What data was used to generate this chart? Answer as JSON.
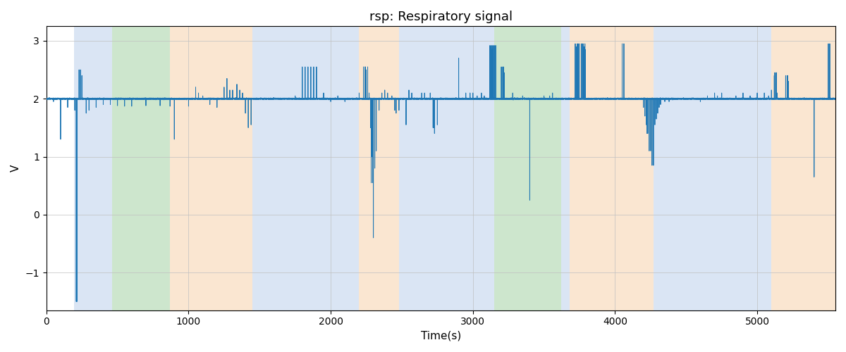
{
  "title": "rsp: Respiratory signal",
  "xlabel": "Time(s)",
  "ylabel": "V",
  "figsize": [
    12.0,
    5.0
  ],
  "dpi": 100,
  "signal_color": "#1f77b4",
  "signal_linewidth": 0.7,
  "background_color": "#ffffff",
  "ylim": [
    -1.65,
    3.25
  ],
  "xlim": [
    0,
    5550
  ],
  "baseline": 2.0,
  "bands": [
    {
      "xmin": 195,
      "xmax": 460,
      "color": "#aec6e8",
      "alpha": 0.45
    },
    {
      "xmin": 460,
      "xmax": 870,
      "color": "#90c990",
      "alpha": 0.45
    },
    {
      "xmin": 870,
      "xmax": 1450,
      "color": "#f5c99a",
      "alpha": 0.45
    },
    {
      "xmin": 1450,
      "xmax": 2200,
      "color": "#aec6e8",
      "alpha": 0.45
    },
    {
      "xmin": 2200,
      "xmax": 2480,
      "color": "#f5c99a",
      "alpha": 0.45
    },
    {
      "xmin": 2480,
      "xmax": 3100,
      "color": "#aec6e8",
      "alpha": 0.45
    },
    {
      "xmin": 3100,
      "xmax": 3150,
      "color": "#aec6e8",
      "alpha": 0.45
    },
    {
      "xmin": 3150,
      "xmax": 3620,
      "color": "#90c990",
      "alpha": 0.45
    },
    {
      "xmin": 3620,
      "xmax": 3680,
      "color": "#aec6e8",
      "alpha": 0.45
    },
    {
      "xmin": 3680,
      "xmax": 4270,
      "color": "#f5c99a",
      "alpha": 0.45
    },
    {
      "xmin": 4270,
      "xmax": 4950,
      "color": "#aec6e8",
      "alpha": 0.45
    },
    {
      "xmin": 4950,
      "xmax": 5100,
      "color": "#aec6e8",
      "alpha": 0.45
    },
    {
      "xmin": 5100,
      "xmax": 5550,
      "color": "#f5c99a",
      "alpha": 0.45
    }
  ],
  "spikes": [
    {
      "t": 50,
      "v": 1.95
    },
    {
      "t": 100,
      "v": 1.3
    },
    {
      "t": 150,
      "v": 1.85
    },
    {
      "t": 200,
      "v": 1.8
    },
    {
      "t": 210,
      "v": -1.5
    },
    {
      "t": 230,
      "v": 2.5
    },
    {
      "t": 250,
      "v": 2.4
    },
    {
      "t": 280,
      "v": 1.75
    },
    {
      "t": 300,
      "v": 1.8
    },
    {
      "t": 350,
      "v": 1.85
    },
    {
      "t": 400,
      "v": 1.9
    },
    {
      "t": 450,
      "v": 1.9
    },
    {
      "t": 500,
      "v": 1.88
    },
    {
      "t": 550,
      "v": 1.87
    },
    {
      "t": 600,
      "v": 1.87
    },
    {
      "t": 700,
      "v": 1.88
    },
    {
      "t": 800,
      "v": 1.88
    },
    {
      "t": 870,
      "v": 1.87
    },
    {
      "t": 900,
      "v": 1.3
    },
    {
      "t": 1000,
      "v": 1.87
    },
    {
      "t": 1050,
      "v": 2.2
    },
    {
      "t": 1070,
      "v": 2.1
    },
    {
      "t": 1100,
      "v": 2.05
    },
    {
      "t": 1150,
      "v": 1.9
    },
    {
      "t": 1200,
      "v": 1.85
    },
    {
      "t": 1250,
      "v": 2.2
    },
    {
      "t": 1270,
      "v": 2.35
    },
    {
      "t": 1290,
      "v": 2.15
    },
    {
      "t": 1310,
      "v": 2.15
    },
    {
      "t": 1340,
      "v": 2.25
    },
    {
      "t": 1360,
      "v": 2.15
    },
    {
      "t": 1380,
      "v": 2.1
    },
    {
      "t": 1400,
      "v": 1.75
    },
    {
      "t": 1420,
      "v": 1.5
    },
    {
      "t": 1440,
      "v": 1.55
    },
    {
      "t": 1600,
      "v": 2.0
    },
    {
      "t": 1750,
      "v": 2.05
    },
    {
      "t": 1800,
      "v": 2.5
    },
    {
      "t": 1820,
      "v": 2.55
    },
    {
      "t": 1840,
      "v": 2.5
    },
    {
      "t": 1860,
      "v": 2.45
    },
    {
      "t": 1880,
      "v": 2.55
    },
    {
      "t": 1900,
      "v": 2.55
    },
    {
      "t": 1950,
      "v": 2.1
    },
    {
      "t": 2000,
      "v": 1.95
    },
    {
      "t": 2050,
      "v": 2.05
    },
    {
      "t": 2100,
      "v": 1.95
    },
    {
      "t": 2150,
      "v": 2.0
    },
    {
      "t": 2200,
      "v": 2.1
    },
    {
      "t": 2230,
      "v": 2.5
    },
    {
      "t": 2240,
      "v": 2.55
    },
    {
      "t": 2250,
      "v": 2.5
    },
    {
      "t": 2270,
      "v": 2.1
    },
    {
      "t": 2280,
      "v": 1.5
    },
    {
      "t": 2290,
      "v": 1.0
    },
    {
      "t": 2295,
      "v": 0.55
    },
    {
      "t": 2300,
      "v": -0.4
    },
    {
      "t": 2310,
      "v": 0.8
    },
    {
      "t": 2320,
      "v": 1.1
    },
    {
      "t": 2340,
      "v": 1.8
    },
    {
      "t": 2360,
      "v": 2.1
    },
    {
      "t": 2380,
      "v": 2.15
    },
    {
      "t": 2400,
      "v": 2.1
    },
    {
      "t": 2430,
      "v": 2.05
    },
    {
      "t": 2450,
      "v": 1.8
    },
    {
      "t": 2460,
      "v": 1.75
    },
    {
      "t": 2480,
      "v": 1.8
    },
    {
      "t": 2500,
      "v": 2.0
    },
    {
      "t": 2530,
      "v": 1.55
    },
    {
      "t": 2550,
      "v": 2.15
    },
    {
      "t": 2570,
      "v": 2.1
    },
    {
      "t": 2600,
      "v": 2.0
    },
    {
      "t": 2640,
      "v": 2.1
    },
    {
      "t": 2660,
      "v": 2.1
    },
    {
      "t": 2700,
      "v": 2.1
    },
    {
      "t": 2720,
      "v": 1.5
    },
    {
      "t": 2730,
      "v": 1.4
    },
    {
      "t": 2750,
      "v": 1.55
    },
    {
      "t": 2800,
      "v": 2.0
    },
    {
      "t": 2900,
      "v": 2.7
    },
    {
      "t": 2950,
      "v": 2.1
    },
    {
      "t": 2980,
      "v": 2.1
    },
    {
      "t": 3000,
      "v": 2.1
    },
    {
      "t": 3030,
      "v": 2.05
    },
    {
      "t": 3060,
      "v": 2.1
    },
    {
      "t": 3080,
      "v": 2.05
    },
    {
      "t": 3100,
      "v": 2.0
    },
    {
      "t": 3120,
      "v": 2.85
    },
    {
      "t": 3125,
      "v": 2.9
    },
    {
      "t": 3135,
      "v": 2.85
    },
    {
      "t": 3140,
      "v": 2.9
    },
    {
      "t": 3150,
      "v": 2.8
    },
    {
      "t": 3160,
      "v": 2.55
    },
    {
      "t": 3170,
      "v": 2.0
    },
    {
      "t": 3200,
      "v": 2.5
    },
    {
      "t": 3210,
      "v": 2.55
    },
    {
      "t": 3220,
      "v": 2.45
    },
    {
      "t": 3280,
      "v": 2.1
    },
    {
      "t": 3300,
      "v": 2.0
    },
    {
      "t": 3350,
      "v": 2.05
    },
    {
      "t": 3400,
      "v": 0.25
    },
    {
      "t": 3450,
      "v": 2.0
    },
    {
      "t": 3500,
      "v": 2.05
    },
    {
      "t": 3540,
      "v": 2.05
    },
    {
      "t": 3560,
      "v": 2.1
    },
    {
      "t": 3600,
      "v": 2.0
    },
    {
      "t": 3650,
      "v": 2.0
    },
    {
      "t": 3700,
      "v": 2.0
    },
    {
      "t": 3720,
      "v": 2.95
    },
    {
      "t": 3730,
      "v": 2.9
    },
    {
      "t": 3740,
      "v": 2.95
    },
    {
      "t": 3760,
      "v": 2.9
    },
    {
      "t": 3770,
      "v": 2.95
    },
    {
      "t": 3780,
      "v": 2.9
    },
    {
      "t": 3790,
      "v": 2.85
    },
    {
      "t": 3800,
      "v": 2.0
    },
    {
      "t": 3850,
      "v": 2.0
    },
    {
      "t": 3900,
      "v": 2.0
    },
    {
      "t": 3950,
      "v": 2.0
    },
    {
      "t": 4000,
      "v": 2.0
    },
    {
      "t": 4050,
      "v": 2.95
    },
    {
      "t": 4060,
      "v": 2.9
    },
    {
      "t": 4100,
      "v": 2.0
    },
    {
      "t": 4150,
      "v": 2.0
    },
    {
      "t": 4200,
      "v": 1.85
    },
    {
      "t": 4210,
      "v": 1.7
    },
    {
      "t": 4220,
      "v": 1.55
    },
    {
      "t": 4230,
      "v": 1.4
    },
    {
      "t": 4240,
      "v": 1.25
    },
    {
      "t": 4250,
      "v": 1.1
    },
    {
      "t": 4260,
      "v": 0.95
    },
    {
      "t": 4270,
      "v": 0.85
    },
    {
      "t": 4280,
      "v": 1.55
    },
    {
      "t": 4290,
      "v": 1.65
    },
    {
      "t": 4300,
      "v": 1.75
    },
    {
      "t": 4310,
      "v": 1.85
    },
    {
      "t": 4320,
      "v": 1.9
    },
    {
      "t": 4350,
      "v": 1.95
    },
    {
      "t": 4380,
      "v": 1.95
    },
    {
      "t": 4400,
      "v": 2.0
    },
    {
      "t": 4500,
      "v": 2.0
    },
    {
      "t": 4600,
      "v": 1.95
    },
    {
      "t": 4650,
      "v": 2.05
    },
    {
      "t": 4700,
      "v": 2.1
    },
    {
      "t": 4720,
      "v": 2.05
    },
    {
      "t": 4750,
      "v": 2.1
    },
    {
      "t": 4800,
      "v": 2.0
    },
    {
      "t": 4850,
      "v": 2.05
    },
    {
      "t": 4900,
      "v": 2.1
    },
    {
      "t": 4950,
      "v": 2.05
    },
    {
      "t": 5000,
      "v": 2.1
    },
    {
      "t": 5050,
      "v": 2.1
    },
    {
      "t": 5080,
      "v": 2.05
    },
    {
      "t": 5100,
      "v": 2.15
    },
    {
      "t": 5120,
      "v": 2.4
    },
    {
      "t": 5130,
      "v": 2.45
    },
    {
      "t": 5140,
      "v": 2.1
    },
    {
      "t": 5150,
      "v": 2.0
    },
    {
      "t": 5200,
      "v": 2.35
    },
    {
      "t": 5210,
      "v": 2.4
    },
    {
      "t": 5220,
      "v": 2.3
    },
    {
      "t": 5250,
      "v": 2.0
    },
    {
      "t": 5300,
      "v": 2.0
    },
    {
      "t": 5400,
      "v": 0.65
    },
    {
      "t": 5450,
      "v": 2.0
    },
    {
      "t": 5500,
      "v": 2.95
    },
    {
      "t": 5520,
      "v": 2.0
    }
  ]
}
